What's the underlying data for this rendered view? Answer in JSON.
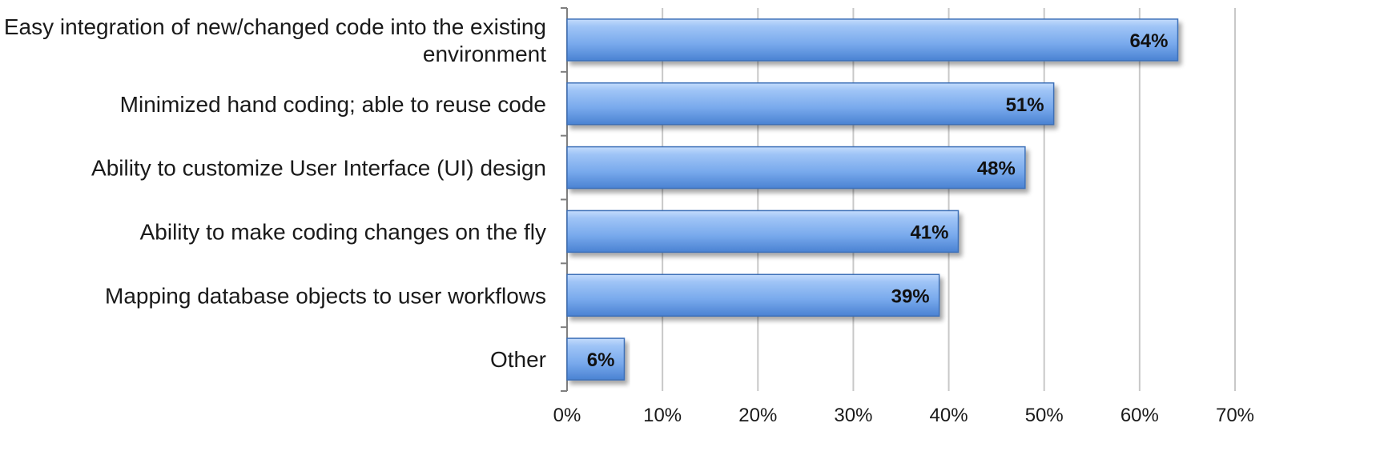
{
  "chart_data": {
    "type": "bar",
    "orientation": "horizontal",
    "categories": [
      "Easy integration of new/changed code into the existing environment",
      "Minimized hand coding; able to reuse code",
      "Ability to customize User Interface (UI) design",
      "Ability to make coding changes on the fly",
      "Mapping database objects to user workflows",
      "Other"
    ],
    "category_label_lines": [
      [
        "Easy integration of new/changed code into the existing",
        "environment"
      ],
      [
        "Minimized hand coding; able to reuse code"
      ],
      [
        "Ability to customize User Interface (UI) design"
      ],
      [
        "Ability to make coding changes on the fly"
      ],
      [
        "Mapping database objects to user workflows"
      ],
      [
        "Other"
      ]
    ],
    "values": [
      64,
      51,
      48,
      41,
      39,
      6
    ],
    "data_labels": [
      "64%",
      "51%",
      "48%",
      "41%",
      "39%",
      "6%"
    ],
    "xlim": [
      0,
      70
    ],
    "x_ticks": [
      0,
      10,
      20,
      30,
      40,
      50,
      60,
      70
    ],
    "x_tick_labels": [
      "0%",
      "10%",
      "20%",
      "30%",
      "40%",
      "50%",
      "60%",
      "70%"
    ],
    "title": "",
    "xlabel": "",
    "ylabel": "",
    "grid": "vertical",
    "legend": "none",
    "colors": {
      "bar_top": "#b7d3fb",
      "bar_mid": "#7fb0ef",
      "bar_bottom": "#4d86d6",
      "bar_edge": "#3c6fb8",
      "grid": "#c8c8c8",
      "axis": "#7f7f7f"
    }
  }
}
